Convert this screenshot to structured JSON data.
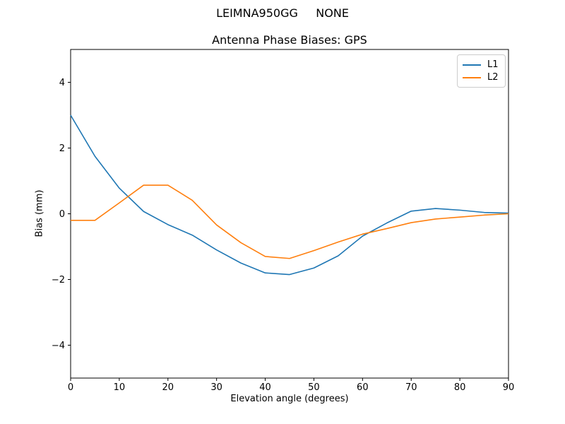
{
  "chart_data": {
    "type": "line",
    "suptitle": "LEIMNA950GG     NONE",
    "title": "Antenna Phase Biases: GPS",
    "xlabel": "Elevation angle (degrees)",
    "ylabel": "Bias (mm)",
    "xlim": [
      0,
      90
    ],
    "ylim": [
      -5,
      5
    ],
    "x_ticks": [
      0,
      10,
      20,
      30,
      40,
      50,
      60,
      70,
      80,
      90
    ],
    "x_tick_labels": [
      "0",
      "10",
      "20",
      "30",
      "40",
      "50",
      "60",
      "70",
      "80",
      "90"
    ],
    "y_ticks": [
      4,
      2,
      0,
      -2,
      -4
    ],
    "y_tick_labels": [
      "4",
      "2",
      "0",
      "−2",
      "−4"
    ],
    "grid": false,
    "legend_position": "upper right",
    "x": [
      0,
      5,
      10,
      15,
      20,
      25,
      30,
      35,
      40,
      45,
      50,
      55,
      60,
      65,
      70,
      75,
      80,
      85,
      90
    ],
    "series": [
      {
        "name": "L1",
        "color": "#1f77b4",
        "values": [
          3.0,
          1.75,
          0.78,
          0.07,
          -0.33,
          -0.65,
          -1.1,
          -1.5,
          -1.8,
          -1.85,
          -1.65,
          -1.28,
          -0.68,
          -0.28,
          0.08,
          0.16,
          0.11,
          0.04,
          0.02
        ]
      },
      {
        "name": "L2",
        "color": "#ff7f0e",
        "values": [
          -0.2,
          -0.2,
          0.33,
          0.87,
          0.87,
          0.41,
          -0.34,
          -0.88,
          -1.3,
          -1.36,
          -1.12,
          -0.86,
          -0.62,
          -0.45,
          -0.27,
          -0.16,
          -0.1,
          -0.04,
          0.0
        ]
      }
    ]
  },
  "colors": {
    "axis": "#000000",
    "legend_border": "#cccccc",
    "background": "#ffffff"
  }
}
